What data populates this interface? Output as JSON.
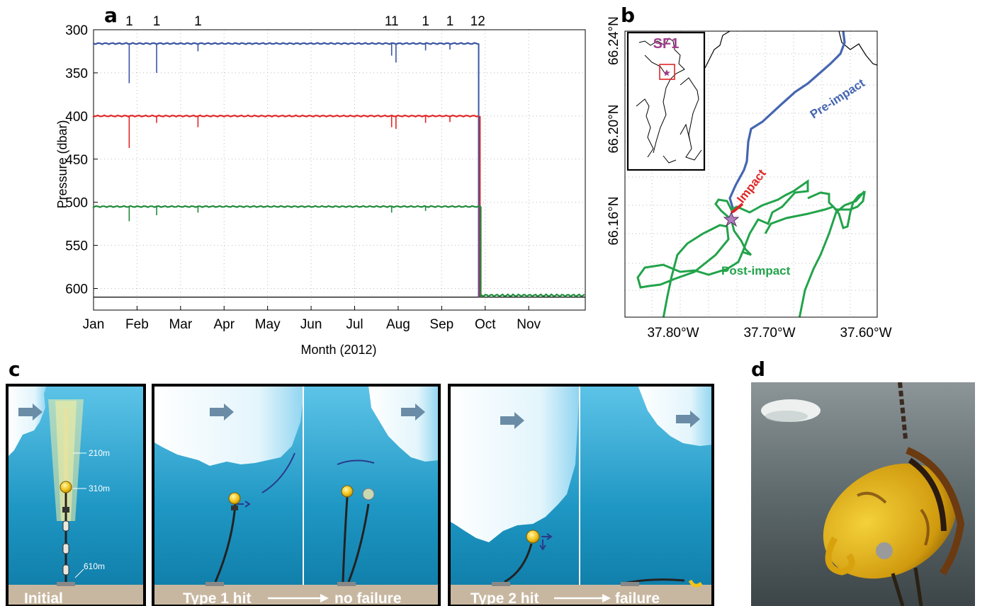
{
  "panels": {
    "a": "a",
    "b": "b",
    "c": "c",
    "d": "d"
  },
  "chart_data": [
    {
      "type": "line",
      "panel": "a",
      "xlabel": "Month (2012)",
      "ylabel": "Pressure (dbar)",
      "ylim": [
        610,
        300
      ],
      "y_inverted": true,
      "xlim": [
        0,
        11.3
      ],
      "x_ticks": [
        "Jan",
        "Feb",
        "Mar",
        "Apr",
        "May",
        "Jun",
        "Jul",
        "Aug",
        "Sep",
        "Oct",
        "Nov"
      ],
      "y_ticks": [
        300,
        350,
        400,
        450,
        500,
        550,
        600
      ],
      "grid": true,
      "top_annotations": [
        {
          "x": 0.82,
          "label": "1"
        },
        {
          "x": 1.45,
          "label": "1"
        },
        {
          "x": 2.4,
          "label": "1"
        },
        {
          "x": 6.85,
          "label": "11"
        },
        {
          "x": 7.63,
          "label": "1"
        },
        {
          "x": 8.19,
          "label": "1"
        },
        {
          "x": 8.83,
          "label": "12"
        }
      ],
      "reference_line": 610,
      "series": [
        {
          "color": "#3a55a3",
          "level": 316,
          "spikes": [
            {
              "x": 0.82,
              "y": 362
            },
            {
              "x": 1.45,
              "y": 350
            },
            {
              "x": 2.4,
              "y": 325
            },
            {
              "x": 6.85,
              "y": 330
            },
            {
              "x": 6.95,
              "y": 338
            },
            {
              "x": 7.63,
              "y": 324
            },
            {
              "x": 8.19,
              "y": 323
            }
          ],
          "drop_x": 8.85,
          "final": 610
        },
        {
          "color": "#e02626",
          "level": 400,
          "spikes": [
            {
              "x": 0.82,
              "y": 437
            },
            {
              "x": 1.45,
              "y": 408
            },
            {
              "x": 2.4,
              "y": 413
            },
            {
              "x": 6.85,
              "y": 413
            },
            {
              "x": 6.95,
              "y": 415
            },
            {
              "x": 7.63,
              "y": 408
            },
            {
              "x": 8.19,
              "y": 407
            }
          ],
          "drop_x": 8.88,
          "final": 610
        },
        {
          "color": "#1f8a3b",
          "level": 505,
          "spikes": [
            {
              "x": 0.82,
              "y": 522
            },
            {
              "x": 1.45,
              "y": 515
            },
            {
              "x": 2.4,
              "y": 512
            },
            {
              "x": 6.85,
              "y": 512
            },
            {
              "x": 7.63,
              "y": 510
            }
          ],
          "drop_x": 8.9,
          "final": 610
        }
      ]
    },
    {
      "type": "map",
      "panel": "b",
      "x_ticks": [
        "37.80°W",
        "37.70°W",
        "37.60°W"
      ],
      "y_ticks": [
        "66.24°N",
        "66.20°N",
        "66.16°N"
      ],
      "labels": {
        "pre": "Pre-impact",
        "impact": "Impact",
        "post": "Post-impact",
        "inset": "SF1"
      },
      "colors": {
        "pre": "#4466b0",
        "impact": "#e02626",
        "post": "#22a34a",
        "inset": "#a23d8e"
      }
    }
  ],
  "diagram": {
    "depths": [
      "210m",
      "310m",
      "610m"
    ],
    "labels": [
      "Initial",
      "Type 1 hit",
      "no failure",
      "Type 2 hit",
      "failure"
    ]
  }
}
